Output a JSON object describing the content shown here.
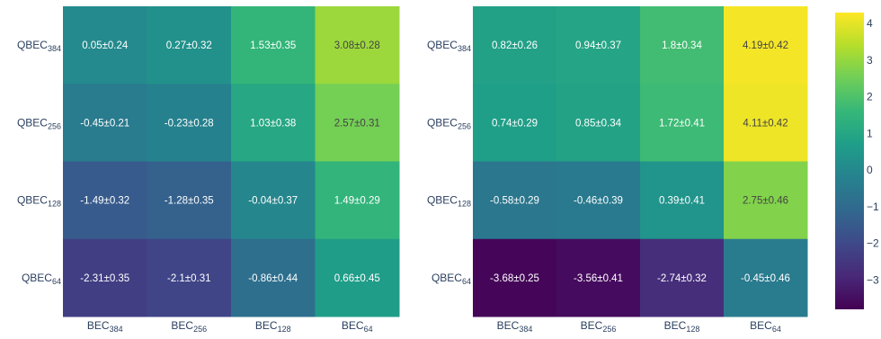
{
  "chart_data": [
    {
      "type": "heatmap",
      "rows": [
        {
          "label": "QBEC",
          "sub": "384"
        },
        {
          "label": "QBEC",
          "sub": "256"
        },
        {
          "label": "QBEC",
          "sub": "128"
        },
        {
          "label": "QBEC",
          "sub": "64"
        }
      ],
      "columns": [
        {
          "label": "BEC",
          "sub": "384"
        },
        {
          "label": "BEC",
          "sub": "256"
        },
        {
          "label": "BEC",
          "sub": "128"
        },
        {
          "label": "BEC",
          "sub": "64"
        }
      ],
      "values": [
        [
          0.05,
          0.27,
          1.53,
          3.08
        ],
        [
          -0.45,
          -0.23,
          1.03,
          2.57
        ],
        [
          -1.49,
          -1.28,
          -0.04,
          1.49
        ],
        [
          -2.31,
          -2.1,
          -0.86,
          0.66
        ]
      ],
      "cell_labels": [
        [
          "0.05±0.24",
          "0.27±0.32",
          "1.53±0.35",
          "3.08±0.28"
        ],
        [
          "-0.45±0.21",
          "-0.23±0.28",
          "1.03±0.38",
          "2.57±0.31"
        ],
        [
          "-1.49±0.32",
          "-1.28±0.35",
          "-0.04±0.37",
          "1.49±0.29"
        ],
        [
          "-2.31±0.35",
          "-2.1±0.31",
          "-0.86±0.44",
          "0.66±0.45"
        ]
      ]
    },
    {
      "type": "heatmap",
      "rows": [
        {
          "label": "QBEC",
          "sub": "384"
        },
        {
          "label": "QBEC",
          "sub": "256"
        },
        {
          "label": "QBEC",
          "sub": "128"
        },
        {
          "label": "QBEC",
          "sub": "64"
        }
      ],
      "columns": [
        {
          "label": "BEC",
          "sub": "384"
        },
        {
          "label": "BEC",
          "sub": "256"
        },
        {
          "label": "BEC",
          "sub": "128"
        },
        {
          "label": "BEC",
          "sub": "64"
        }
      ],
      "values": [
        [
          0.82,
          0.94,
          1.8,
          4.19
        ],
        [
          0.74,
          0.85,
          1.72,
          4.11
        ],
        [
          -0.58,
          -0.46,
          0.39,
          2.75
        ],
        [
          -3.68,
          -3.56,
          -2.74,
          -0.45
        ]
      ],
      "cell_labels": [
        [
          "0.82±0.26",
          "0.94±0.37",
          "1.8±0.34",
          "4.19±0.42"
        ],
        [
          "0.74±0.29",
          "0.85±0.34",
          "1.72±0.41",
          "4.11±0.42"
        ],
        [
          "-0.58±0.29",
          "-0.46±0.39",
          "0.39±0.41",
          "2.75±0.46"
        ],
        [
          "-3.68±0.25",
          "-3.56±0.41",
          "-2.74±0.32",
          "-0.45±0.46"
        ]
      ]
    }
  ],
  "colorbar": {
    "colorscale": "Viridis",
    "range": [
      -3.8,
      4.3
    ],
    "ticks": [
      4,
      3,
      2,
      1,
      0,
      -1,
      -2,
      -3
    ],
    "tick_labels": [
      "4",
      "3",
      "2",
      "1",
      "0",
      "−1",
      "−2",
      "−3"
    ]
  },
  "colors": {
    "axis_text": "#2a3f5f",
    "cell_text_dark_bg": "#ffffff",
    "cell_text_light_bg": "#444444"
  }
}
